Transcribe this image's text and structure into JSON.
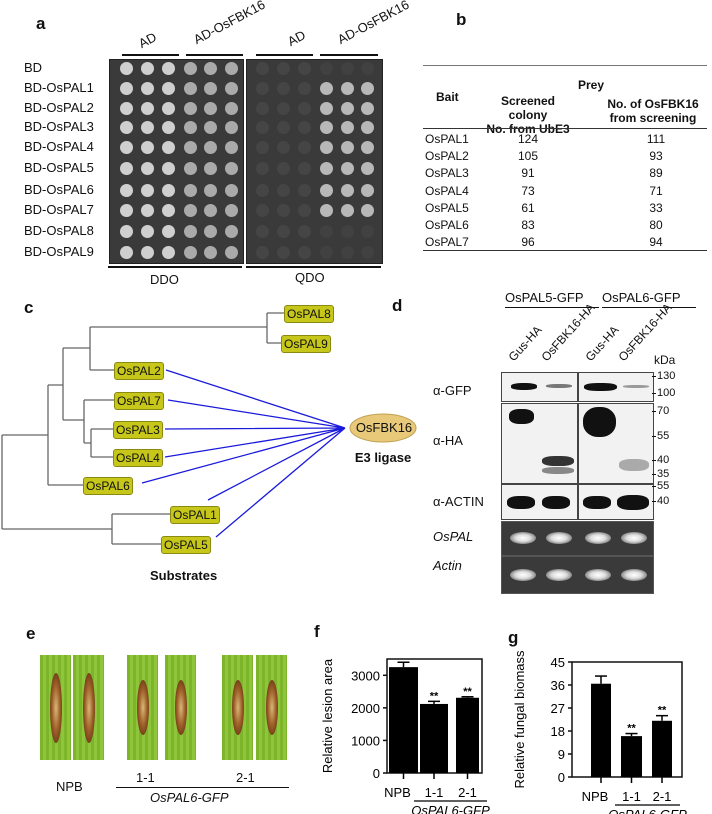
{
  "panels": {
    "a": "a",
    "b": "b",
    "c": "c",
    "d": "d",
    "e": "e",
    "f": "f",
    "g": "g"
  },
  "panel_a": {
    "col_groups": [
      "AD",
      "AD-OsFBK16",
      "AD",
      "AD-OsFBK16"
    ],
    "rows": [
      "BD",
      "BD-OsPAL1",
      "BD-OsPAL2",
      "BD-OsPAL3",
      "BD-OsPAL4",
      "BD-OsPAL5",
      "BD-OsPAL6",
      "BD-OsPAL7",
      "BD-OsPAL8",
      "BD-OsPAL9"
    ],
    "media": [
      "DDO",
      "QDO"
    ],
    "qdo_growth_rows_with_AD_OsFBK16": [
      1,
      2,
      3,
      4,
      5,
      6,
      7
    ]
  },
  "panel_b": {
    "prey_header": "Prey",
    "bait_header": "Bait",
    "col2_header_l1": "Screened colony",
    "col2_header_l2": "No. from UbE3",
    "col3_header_l1": "No. of OsFBK16",
    "col3_header_l2": "from screening",
    "rows": [
      {
        "bait": "OsPAL1",
        "screened": "124",
        "osfbk16": "111"
      },
      {
        "bait": "OsPAL2",
        "screened": "105",
        "osfbk16": "93"
      },
      {
        "bait": "OsPAL3",
        "screened": "91",
        "osfbk16": "89"
      },
      {
        "bait": "OsPAL4",
        "screened": "73",
        "osfbk16": "71"
      },
      {
        "bait": "OsPAL5",
        "screened": "61",
        "osfbk16": "33"
      },
      {
        "bait": "OsPAL6",
        "screened": "83",
        "osfbk16": "80"
      },
      {
        "bait": "OsPAL7",
        "screened": "96",
        "osfbk16": "94"
      }
    ]
  },
  "panel_c": {
    "nodes": {
      "p8": "OsPAL8",
      "p9": "OsPAL9",
      "p2": "OsPAL2",
      "p7": "OsPAL7",
      "p3": "OsPAL3",
      "p4": "OsPAL4",
      "p6": "OsPAL6",
      "p1": "OsPAL1",
      "p5": "OsPAL5"
    },
    "e3": "OsFBK16",
    "e3_label": "E3 ligase",
    "substrates_label": "Substrates",
    "line_color": "#1a1adb",
    "box_color": "#c6c71a",
    "ellipse_color": "#e8c97a"
  },
  "panel_d": {
    "groups": [
      "OsPAL5-GFP",
      "OsPAL6-GFP"
    ],
    "lanes": [
      "Gus-HA",
      "OsFBK16-HA",
      "Gus-HA",
      "OsFBK16-HA"
    ],
    "kda": "kDa",
    "markers": [
      "130",
      "100",
      "70",
      "55",
      "40",
      "35",
      "55",
      "40"
    ],
    "rows": [
      "α-GFP",
      "α-HA",
      "α-ACTIN",
      "OsPAL",
      "Actin"
    ]
  },
  "panel_e": {
    "labels": {
      "npb": "NPB",
      "l11": "1-1",
      "l21": "2-1",
      "line": "OsPAL6-GFP"
    }
  },
  "chart_data": [
    {
      "type": "bar",
      "title": "",
      "ylabel": "Relative lesion area",
      "ylim": [
        0,
        3500
      ],
      "yticks": [
        "0",
        "1000",
        "2000",
        "3000"
      ],
      "ytick_values": [
        0,
        1000,
        2000,
        3000
      ],
      "categories": [
        "NPB",
        "1-1",
        "2-1"
      ],
      "values": [
        3250,
        2120,
        2310
      ],
      "errors": [
        150,
        80,
        30
      ],
      "significance": [
        "",
        "**",
        "**"
      ],
      "group_label": "OsPAL6-GFP"
    },
    {
      "type": "bar",
      "title": "",
      "ylabel": "Relative fungal biomass",
      "ylim": [
        0,
        45
      ],
      "yticks": [
        "0",
        "9",
        "18",
        "27",
        "36",
        "45"
      ],
      "ytick_values": [
        0,
        9,
        18,
        27,
        36,
        45
      ],
      "categories": [
        "NPB",
        "1-1",
        "2-1"
      ],
      "values": [
        36.5,
        16,
        22
      ],
      "errors": [
        3,
        1,
        2
      ],
      "significance": [
        "",
        "**",
        "**"
      ],
      "group_label": "OsPAL6-GFP"
    }
  ]
}
